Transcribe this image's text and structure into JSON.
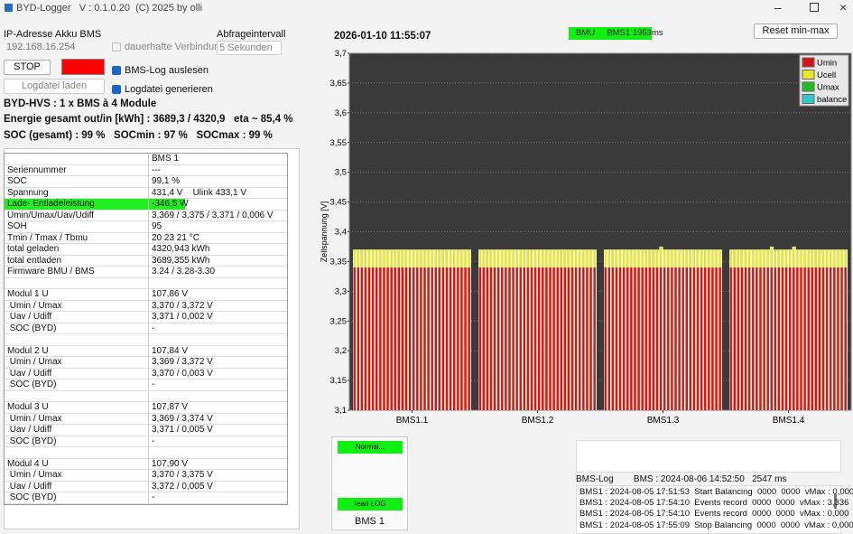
{
  "window": {
    "title": "BYD-Logger   V : 0.1.0.20  (C) 2025 by olli"
  },
  "controls": {
    "ip_label": "IP-Adresse Akku BMS",
    "ip_value": "192.168.16.254",
    "persistent": "dauerhafte Verbindung",
    "interval_label": "Abfrageintervall",
    "interval_value": "5 Sekunden",
    "stop": "STOP",
    "bms_log": "BMS-Log auslesen",
    "load_log": "Logdatei laden",
    "gen_log": "Logdatei generieren",
    "reset": "Reset min-max"
  },
  "summary": {
    "system": "BYD-HVS : 1 x BMS à 4 Module",
    "energy": "Energie gesamt out/in [kWh] : 3689,3 / 4320,9   eta ~ 85,4 %",
    "soc": "SOC (gesamt) : 99 %   SOCmin : 97 %   SOCmax : 99 %"
  },
  "table": {
    "rows": [
      [
        null,
        "BMS 1"
      ],
      [
        "Seriennummer",
        "---"
      ],
      [
        "SOC",
        "99,1 %"
      ],
      [
        "Spannung",
        "431,4 V    Ulink 433,1 V"
      ],
      [
        "Lade- Entladeleistung",
        "-346,5 W"
      ],
      [
        "Umin/Umax/Uav/Udiff",
        "3,369 / 3,375 / 3,371 / 0,006 V"
      ],
      [
        "SOH",
        "95"
      ],
      [
        "Tmin / Tmax / Tbmu",
        "20 23 21 °C"
      ],
      [
        "total geladen",
        "4320,943 kWh"
      ],
      [
        "total entladen",
        "3689,355 kWh"
      ],
      [
        "Firmware BMU / BMS",
        "3.24 / 3.28-3.30"
      ],
      [
        null,
        null
      ],
      [
        "Modul 1 U",
        "107,86 V"
      ],
      [
        " Umin / Umax",
        "3,370 / 3,372 V"
      ],
      [
        " Uav / Udiff",
        "3,371 / 0,002 V"
      ],
      [
        " SOC (BYD)",
        "-"
      ],
      [
        null,
        null
      ],
      [
        "Modul 2 U",
        "107,84 V"
      ],
      [
        " Umin / Umax",
        "3,369 / 3,372 V"
      ],
      [
        " Uav / Udiff",
        "3,370 / 0,003 V"
      ],
      [
        " SOC (BYD)",
        "-"
      ],
      [
        null,
        null
      ],
      [
        "Modul 3 U",
        "107,87 V"
      ],
      [
        " Umin / Umax",
        "3,369 / 3,374 V"
      ],
      [
        " Uav / Udiff",
        "3,371 / 0,005 V"
      ],
      [
        " SOC (BYD)",
        "-"
      ],
      [
        null,
        null
      ],
      [
        "Modul 4 U",
        "107,90 V"
      ],
      [
        " Umin / Umax",
        "3,370 / 3,375 V"
      ],
      [
        " Uav / Udiff",
        "3,372 / 0,005 V"
      ],
      [
        " SOC (BYD)",
        "-"
      ]
    ]
  },
  "status": {
    "timestamp": "2026-01-10 11:55:07",
    "bmu": "BMU     BMS1 1953ms"
  },
  "bms_panel": {
    "state": "Normal...",
    "log_state": "read LOG",
    "name": "BMS 1"
  },
  "log": {
    "header": "BMS-Log        BMS : 2024-08-06 14:52:50   2547 ms",
    "lines": [
      "BMS1 : 2024-08-05 17:51:53  Start Balancing  0000  0000  vMax : 0,000",
      "BMS1 : 2024-08-05 17:54:10  Events record  0000  0000  vMax : 3,336",
      "BMS1 : 2024-08-05 17:54:10  Events record  0000  0000  vMax : 0,000",
      "BMS1 : 2024-08-05 17:55:09  Stop Balancing  0000  0000  vMax : 0,000"
    ]
  },
  "chart_data": {
    "type": "grouped-cells",
    "y_label": "Zellspannung [V]",
    "categories": [
      "BMS1.1",
      "BMS1.2",
      "BMS1.3",
      "BMS1.4"
    ],
    "ylim": [
      3.1,
      3.7
    ],
    "yticks": [
      {
        "value": 3.1,
        "label": "3,1"
      },
      {
        "value": 3.15,
        "label": "3,15"
      },
      {
        "value": 3.2,
        "label": "3,2"
      },
      {
        "value": 3.25,
        "label": "3,25"
      },
      {
        "value": 3.3,
        "label": "3,3"
      },
      {
        "value": 3.35,
        "label": "3,35"
      },
      {
        "value": 3.4,
        "label": "3,4"
      },
      {
        "value": 3.45,
        "label": "3,45"
      },
      {
        "value": 3.5,
        "label": "3,5"
      },
      {
        "value": 3.55,
        "label": "3,55"
      },
      {
        "value": 3.6,
        "label": "3,6"
      },
      {
        "value": 3.65,
        "label": "3,65"
      },
      {
        "value": 3.7,
        "label": "3,7"
      }
    ],
    "grid": true,
    "legend": "top-right",
    "series": [
      {
        "name": "Ucell",
        "color": "#e6e62a",
        "values": [
          [
            3.37,
            3.37,
            3.37,
            3.37,
            3.37,
            3.37,
            3.37,
            3.37,
            3.37,
            3.37,
            3.37,
            3.37,
            3.37,
            3.37,
            3.37,
            3.37,
            3.37,
            3.37,
            3.37,
            3.37,
            3.37,
            3.37,
            3.37,
            3.37,
            3.37,
            3.37,
            3.37,
            3.37,
            3.37,
            3.37,
            3.37,
            3.37
          ],
          [
            3.37,
            3.37,
            3.37,
            3.37,
            3.37,
            3.37,
            3.37,
            3.37,
            3.37,
            3.37,
            3.37,
            3.37,
            3.37,
            3.37,
            3.37,
            3.37,
            3.37,
            3.37,
            3.37,
            3.37,
            3.37,
            3.37,
            3.37,
            3.37,
            3.37,
            3.37,
            3.37,
            3.37,
            3.37,
            3.37,
            3.37,
            3.37
          ],
          [
            3.37,
            3.37,
            3.37,
            3.37,
            3.37,
            3.37,
            3.37,
            3.37,
            3.37,
            3.37,
            3.37,
            3.37,
            3.37,
            3.37,
            3.37,
            3.375,
            3.37,
            3.37,
            3.37,
            3.37,
            3.37,
            3.37,
            3.37,
            3.37,
            3.37,
            3.37,
            3.37,
            3.37,
            3.37,
            3.37,
            3.37,
            3.37
          ],
          [
            3.37,
            3.37,
            3.37,
            3.37,
            3.37,
            3.37,
            3.37,
            3.37,
            3.37,
            3.37,
            3.37,
            3.375,
            3.37,
            3.37,
            3.37,
            3.37,
            3.37,
            3.375,
            3.37,
            3.37,
            3.37,
            3.37,
            3.37,
            3.37,
            3.37,
            3.37,
            3.37,
            3.37,
            3.37,
            3.37,
            3.37,
            3.37
          ]
        ]
      },
      {
        "name": "Umin",
        "color": "#d01818",
        "values": [
          [
            3.34,
            3.34,
            3.34,
            3.34,
            3.34,
            3.34,
            3.34,
            3.34,
            3.34,
            3.34,
            3.34,
            3.34,
            3.34,
            3.34,
            3.34,
            3.34,
            3.34,
            3.34,
            3.34,
            3.34,
            3.34,
            3.34,
            3.34,
            3.34,
            3.34,
            3.34,
            3.34,
            3.34,
            3.34,
            3.34,
            3.34,
            3.34
          ],
          [
            3.34,
            3.34,
            3.34,
            3.34,
            3.34,
            3.34,
            3.34,
            3.34,
            3.34,
            3.34,
            3.34,
            3.34,
            3.34,
            3.34,
            3.34,
            3.34,
            3.34,
            3.34,
            3.34,
            3.34,
            3.34,
            3.34,
            3.34,
            3.34,
            3.34,
            3.34,
            3.34,
            3.34,
            3.34,
            3.34,
            3.34,
            3.34
          ],
          [
            3.34,
            3.34,
            3.34,
            3.34,
            3.34,
            3.34,
            3.34,
            3.34,
            3.34,
            3.34,
            3.34,
            3.34,
            3.34,
            3.34,
            3.34,
            3.34,
            3.34,
            3.34,
            3.34,
            3.34,
            3.34,
            3.34,
            3.34,
            3.34,
            3.34,
            3.34,
            3.34,
            3.34,
            3.34,
            3.34,
            3.34,
            3.34
          ],
          [
            3.34,
            3.34,
            3.34,
            3.34,
            3.34,
            3.34,
            3.34,
            3.34,
            3.34,
            3.34,
            3.34,
            3.34,
            3.34,
            3.34,
            3.34,
            3.34,
            3.34,
            3.34,
            3.34,
            3.34,
            3.34,
            3.34,
            3.34,
            3.34,
            3.34,
            3.34,
            3.34,
            3.34,
            3.34,
            3.34,
            3.34,
            3.34
          ]
        ]
      },
      {
        "name": "Umax",
        "color": "#22c022"
      },
      {
        "name": "balance",
        "color": "#30c8c8"
      }
    ]
  }
}
